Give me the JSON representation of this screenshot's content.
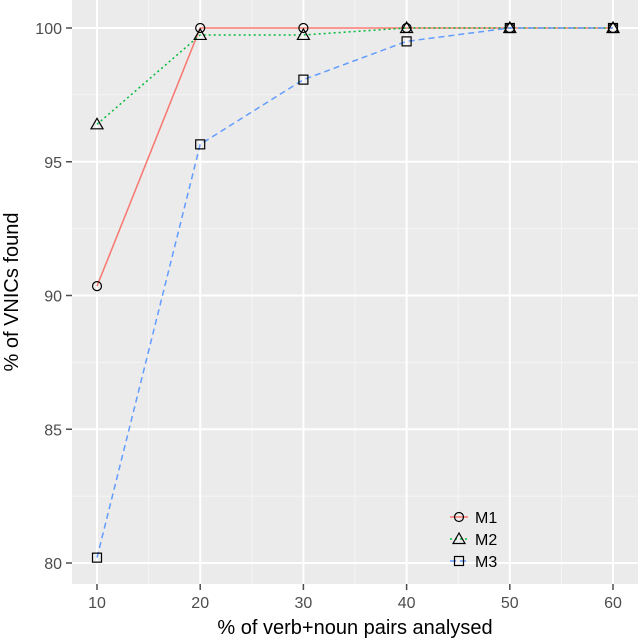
{
  "chart_data": {
    "type": "line",
    "title": "",
    "xlabel": "% of verb+noun pairs analysed",
    "ylabel": "% of VNICs found",
    "x": [
      10,
      20,
      30,
      40,
      50,
      60
    ],
    "xticks": [
      10,
      20,
      30,
      40,
      50,
      60
    ],
    "yticks": [
      80,
      85,
      90,
      95,
      100
    ],
    "xlim": [
      7.5,
      62.5
    ],
    "ylim": [
      79.4,
      101.0
    ],
    "grid": true,
    "legend_position": "inside-bottom-right",
    "series": [
      {
        "name": "M1",
        "color": "#F8766D",
        "linestyle": "solid",
        "marker": "circle",
        "values": [
          90.35,
          100,
          100,
          100,
          100,
          100
        ]
      },
      {
        "name": "M2",
        "color": "#00BA38",
        "linestyle": "dotted",
        "marker": "triangle",
        "values": [
          96.4,
          99.74,
          99.74,
          100,
          100,
          100
        ]
      },
      {
        "name": "M3",
        "color": "#619CFF",
        "linestyle": "dashed",
        "marker": "square",
        "values": [
          80.2,
          95.65,
          98.07,
          99.5,
          100,
          100
        ]
      }
    ]
  }
}
